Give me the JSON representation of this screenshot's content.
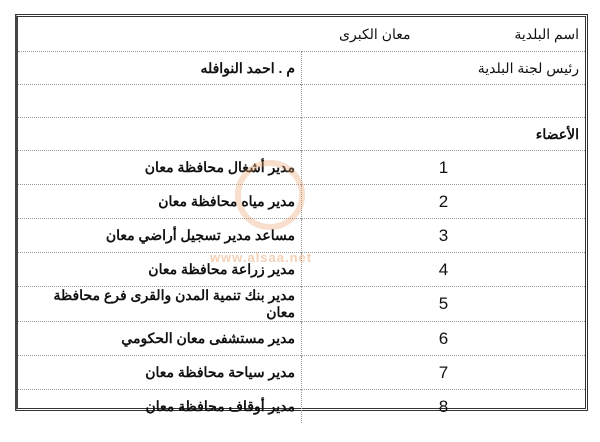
{
  "header": {
    "municipality_label": "اسم البلدية",
    "municipality_value": "معان الكبرى"
  },
  "head": {
    "label": "رئيس لجنة البلدية",
    "value": "م . احمد النوافله"
  },
  "members_label": "الأعضاء",
  "members": [
    {
      "num": "1",
      "title": "مدير أشغال محافظة معان"
    },
    {
      "num": "2",
      "title": "مدير مياه محافظة معان"
    },
    {
      "num": "3",
      "title": "مساعد مدير تسجيل أراضي معان"
    },
    {
      "num": "4",
      "title": "مدير زراعة محافظة معان"
    },
    {
      "num": "5",
      "title": "مدير بنك تنمية المدن والقرى فرع محافظة معان"
    },
    {
      "num": "6",
      "title": "مدير مستشفى معان الحكومي"
    },
    {
      "num": "7",
      "title": "مدير سياحة محافظة معان"
    },
    {
      "num": "8",
      "title": "مدير أوقاف محافظة معان"
    }
  ],
  "watermark": "www.alsaa.net"
}
